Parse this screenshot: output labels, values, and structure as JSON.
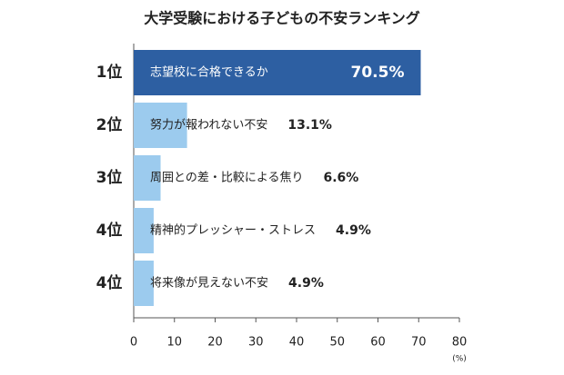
{
  "chart_data": {
    "type": "bar",
    "orientation": "horizontal",
    "title": "大学受験における子どもの不安ランキング",
    "ranks": [
      "1位",
      "2位",
      "3位",
      "4位",
      "4位"
    ],
    "categories": [
      "志望校に合格できるか",
      "努力が報われない不安",
      "周囲との差・比較による焦り",
      "精神的プレッシャー・ストレス",
      "将来像が見えない不安"
    ],
    "values": [
      70.5,
      13.1,
      6.6,
      4.9,
      4.9
    ],
    "value_labels": [
      "70.5%",
      "13.1%",
      "6.6%",
      "4.9%",
      "4.9%"
    ],
    "colors": [
      "#2d5fa2",
      "#9ccbee",
      "#9ccbee",
      "#9ccbee",
      "#9ccbee"
    ],
    "xlim": [
      0,
      80
    ],
    "xticks": [
      0,
      10,
      20,
      30,
      40,
      50,
      60,
      70,
      80
    ],
    "x_unit": "(%)"
  }
}
